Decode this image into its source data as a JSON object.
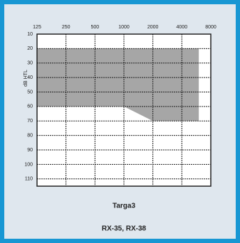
{
  "chart_data": {
    "type": "area",
    "title": "Targa3",
    "subtitle": "RX-35, RX-38",
    "y_label": "dB HTL",
    "x": [
      125,
      250,
      500,
      1000,
      2000,
      4000,
      6000
    ],
    "series": [
      {
        "color": "#a6a6a6",
        "base": [
          20,
          20,
          20,
          20,
          20,
          20,
          20
        ],
        "values": [
          60,
          60,
          60,
          60,
          70,
          70,
          70
        ]
      }
    ],
    "xlim": [
      125,
      8000
    ],
    "xticks": [
      125,
      250,
      500,
      1000,
      2000,
      4000,
      8000
    ],
    "xscale": "log",
    "ylim": [
      10,
      115
    ],
    "yticks": [
      10,
      20,
      30,
      40,
      50,
      60,
      70,
      80,
      90,
      100,
      110
    ],
    "y_inverted": true,
    "grid": true
  }
}
